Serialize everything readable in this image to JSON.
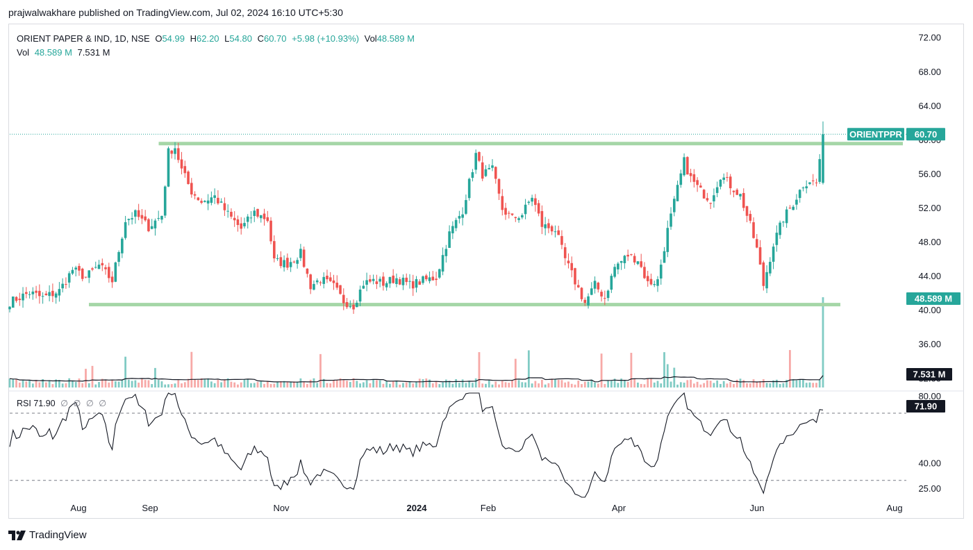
{
  "header": {
    "published": "prajwalwakhare published on TradingView.com, Jul 02, 2024 16:10 UTC+5:30"
  },
  "legend": {
    "symbol": "ORIENT PAPER & IND, 1D, NSE",
    "o_label": "O",
    "o_value": "54.99",
    "h_label": "H",
    "h_value": "62.20",
    "l_label": "L",
    "l_value": "54.80",
    "c_label": "C",
    "c_value": "60.70",
    "change": "+5.98 (+10.93%)",
    "vol_label": "Vol",
    "vol_value": "48.589 M",
    "vol_row_label": "Vol",
    "vol_row_value": "48.589 M",
    "vol_row_ma": "7.531 M"
  },
  "rsi_legend": {
    "label": "RSI",
    "value": "71.90",
    "extras": [
      "∅",
      "∅",
      "∅",
      "∅"
    ]
  },
  "badges": {
    "ticker": "ORIENTPPR",
    "price": "60.70",
    "volume": "48.589 M",
    "volume_ma": "7.531 M",
    "rsi": "71.90"
  },
  "footer": {
    "brand": "TradingView"
  },
  "colors": {
    "up": "#26a69a",
    "down": "#ef5350",
    "level": "#a5d6a7",
    "vol_up": "#80cbc4",
    "vol_down": "#f7a9a7",
    "line": "#131722"
  },
  "chart_data": {
    "type": "candlestick",
    "symbol": "ORIENTPPR",
    "timeframe": "1D",
    "exchange": "NSE",
    "price_axis_ticks": [
      "72.00",
      "68.00",
      "64.00",
      "60.00",
      "56.00",
      "52.00",
      "48.00",
      "44.00",
      "40.00",
      "36.00",
      "32.00"
    ],
    "price_range": [
      30.8,
      73.2
    ],
    "time_axis_ticks": [
      "Aug",
      "Sep",
      "Nov",
      "2024",
      "Feb",
      "Apr",
      "Jun",
      "Aug"
    ],
    "rsi_axis_ticks": [
      "80.00",
      "40.00",
      "25.00"
    ],
    "rsi_range": [
      20,
      82
    ],
    "rsi_levels": [
      70,
      30
    ],
    "horizontal_levels": [
      59.6,
      40.7
    ],
    "last_candle": {
      "open": 54.99,
      "high": 62.2,
      "low": 54.8,
      "close": 60.7
    },
    "last_volume_millions": 48.589,
    "volume_ma_millions": 7.531,
    "last_rsi": 71.9,
    "close_path": [
      [
        0,
        41.0
      ],
      [
        6,
        42.1
      ],
      [
        10,
        41.5
      ],
      [
        15,
        42.3
      ],
      [
        19,
        44.8
      ],
      [
        23,
        43.9
      ],
      [
        27,
        45.3
      ],
      [
        31,
        43.5
      ],
      [
        35,
        50.6
      ],
      [
        38,
        51.3
      ],
      [
        42,
        49.8
      ],
      [
        46,
        51.2
      ],
      [
        48,
        58.6
      ],
      [
        50,
        59.2
      ],
      [
        52,
        56.5
      ],
      [
        55,
        54.0
      ],
      [
        58,
        52.8
      ],
      [
        62,
        53.4
      ],
      [
        66,
        51.3
      ],
      [
        70,
        49.6
      ],
      [
        74,
        51.5
      ],
      [
        78,
        50.7
      ],
      [
        80,
        45.8
      ],
      [
        84,
        45.5
      ],
      [
        88,
        46.7
      ],
      [
        91,
        42.9
      ],
      [
        94,
        43.7
      ],
      [
        98,
        42.8
      ],
      [
        101,
        41.1
      ],
      [
        104,
        40.6
      ],
      [
        107,
        43.2
      ],
      [
        110,
        43.5
      ],
      [
        113,
        43.2
      ],
      [
        117,
        43.8
      ],
      [
        121,
        43.0
      ],
      [
        125,
        43.5
      ],
      [
        129,
        43.9
      ],
      [
        133,
        49.0
      ],
      [
        137,
        51.8
      ],
      [
        139,
        55.0
      ],
      [
        141,
        58.3
      ],
      [
        143,
        56.0
      ],
      [
        146,
        56.5
      ],
      [
        149,
        51.9
      ],
      [
        152,
        50.8
      ],
      [
        155,
        51.3
      ],
      [
        158,
        53.4
      ],
      [
        161,
        50.0
      ],
      [
        165,
        49.5
      ],
      [
        168,
        46.0
      ],
      [
        171,
        43.4
      ],
      [
        174,
        40.9
      ],
      [
        177,
        43.0
      ],
      [
        180,
        41.5
      ],
      [
        183,
        45.1
      ],
      [
        187,
        46.5
      ],
      [
        190,
        46.0
      ],
      [
        193,
        43.2
      ],
      [
        196,
        43.5
      ],
      [
        199,
        49.4
      ],
      [
        202,
        54.3
      ],
      [
        204,
        57.5
      ],
      [
        206,
        55.5
      ],
      [
        209,
        54.0
      ],
      [
        212,
        53.0
      ],
      [
        215,
        55.9
      ],
      [
        218,
        54.7
      ],
      [
        221,
        53.5
      ],
      [
        224,
        50.0
      ],
      [
        226,
        47.2
      ],
      [
        228,
        43.0
      ],
      [
        231,
        47.8
      ],
      [
        234,
        50.8
      ],
      [
        237,
        52.6
      ],
      [
        240,
        54.8
      ],
      [
        242,
        55.3
      ],
      [
        244,
        54.9
      ],
      [
        246,
        60.7
      ]
    ]
  }
}
